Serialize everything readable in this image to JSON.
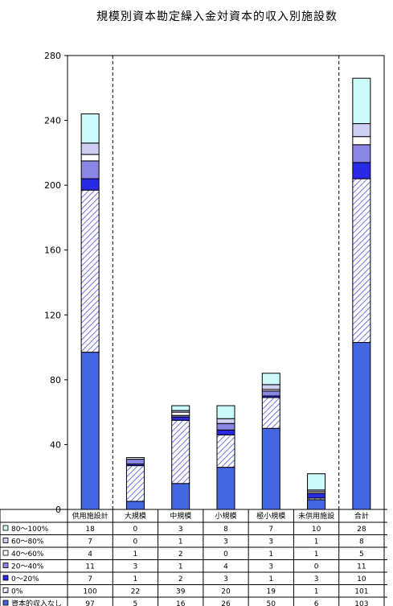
{
  "chart_data": {
    "type": "bar",
    "stacked": true,
    "title": "規模別資本勘定繰入金対資本的収入別施設数",
    "categories": [
      "供用施設計",
      "大規模",
      "中規模",
      "小規模",
      "極小規模",
      "未供用施設",
      "合計"
    ],
    "y_ticks": [
      "0",
      "40",
      "80",
      "120",
      "160",
      "200",
      "240",
      "280"
    ],
    "ylim": [
      0,
      280
    ],
    "grid": false,
    "legend_position": "table-left",
    "series": [
      {
        "name": "資本的収入なし",
        "values": [
          97,
          5,
          16,
          26,
          50,
          6,
          103
        ],
        "labels": [
          "97",
          "5",
          "16",
          "26",
          "50",
          "6",
          "103"
        ],
        "color": "#4466e0",
        "pattern": "solid"
      },
      {
        "name": "0%",
        "values": [
          100,
          22,
          39,
          20,
          19,
          1,
          101
        ],
        "labels": [
          "100",
          "22",
          "39",
          "20",
          "19",
          "1",
          "101"
        ],
        "color": "#ffffff",
        "pattern": "hatch"
      },
      {
        "name": "0～20%",
        "values": [
          7,
          1,
          2,
          3,
          1,
          3,
          10
        ],
        "labels": [
          "7",
          "1",
          "2",
          "3",
          "1",
          "3",
          "10"
        ],
        "color": "#2a2ae6",
        "pattern": "solid"
      },
      {
        "name": "20～40%",
        "values": [
          11,
          3,
          1,
          4,
          3,
          0,
          11
        ],
        "labels": [
          "11",
          "3",
          "1",
          "4",
          "3",
          "0",
          "11"
        ],
        "color": "#8a86e4",
        "pattern": "solid"
      },
      {
        "name": "40～60%",
        "values": [
          4,
          1,
          2,
          0,
          1,
          1,
          5
        ],
        "labels": [
          "4",
          "1",
          "2",
          "0",
          "1",
          "1",
          "5"
        ],
        "color": "#ffffff",
        "pattern": "solid"
      },
      {
        "name": "60～80%",
        "values": [
          7,
          0,
          1,
          3,
          3,
          1,
          8
        ],
        "labels": [
          "7",
          "0",
          "1",
          "3",
          "3",
          "1",
          "8"
        ],
        "color": "#cfcff4",
        "pattern": "solid"
      },
      {
        "name": "80～100%",
        "values": [
          18,
          0,
          3,
          8,
          7,
          10,
          28
        ],
        "labels": [
          "18",
          "0",
          "3",
          "8",
          "7",
          "10",
          "28"
        ],
        "color": "#ccfafa",
        "pattern": "solid"
      }
    ]
  }
}
